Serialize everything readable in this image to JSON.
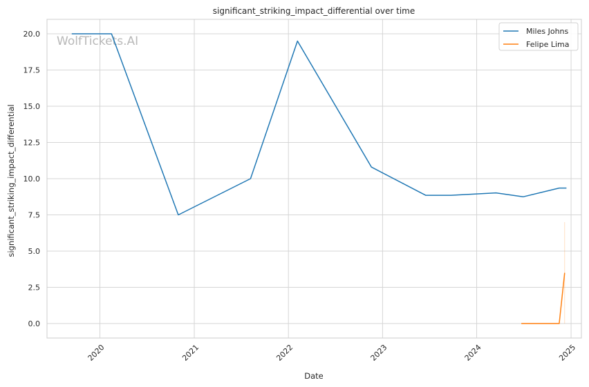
{
  "chart_data": {
    "type": "line",
    "title": "significant_striking_impact_differential over time",
    "xlabel": "Date",
    "ylabel": "significant_striking_impact_differential",
    "watermark": "WolfTickets.AI",
    "x_type": "date",
    "xlim": [
      "2019-06-10",
      "2025-02-10"
    ],
    "ylim": [
      -1.0,
      21.0
    ],
    "x_ticks": [
      {
        "date": "2020-01-01",
        "label": "2020"
      },
      {
        "date": "2021-01-01",
        "label": "2021"
      },
      {
        "date": "2022-01-01",
        "label": "2022"
      },
      {
        "date": "2023-01-01",
        "label": "2023"
      },
      {
        "date": "2024-01-01",
        "label": "2024"
      },
      {
        "date": "2025-01-01",
        "label": "2025"
      }
    ],
    "y_ticks": [
      {
        "value": 0.0,
        "label": "0.0"
      },
      {
        "value": 2.5,
        "label": "2.5"
      },
      {
        "value": 5.0,
        "label": "5.0"
      },
      {
        "value": 7.5,
        "label": "7.5"
      },
      {
        "value": 10.0,
        "label": "10.0"
      },
      {
        "value": 12.5,
        "label": "12.5"
      },
      {
        "value": 15.0,
        "label": "15.0"
      },
      {
        "value": 17.5,
        "label": "17.5"
      },
      {
        "value": 20.0,
        "label": "20.0"
      }
    ],
    "grid": true,
    "legend_position": "top-right",
    "series": [
      {
        "name": "Miles Johns",
        "color": "#1f77b4",
        "points": [
          {
            "x": "2019-09-14",
            "y": 20.0
          },
          {
            "x": "2020-02-15",
            "y": 20.0
          },
          {
            "x": "2020-10-31",
            "y": 7.5
          },
          {
            "x": "2021-08-07",
            "y": 10.0
          },
          {
            "x": "2022-02-05",
            "y": 19.5
          },
          {
            "x": "2022-11-19",
            "y": 10.8
          },
          {
            "x": "2023-06-17",
            "y": 8.85
          },
          {
            "x": "2023-09-23",
            "y": 8.85
          },
          {
            "x": "2024-03-16",
            "y": 9.02
          },
          {
            "x": "2024-06-29",
            "y": 8.75
          },
          {
            "x": "2024-11-16",
            "y": 9.35
          },
          {
            "x": "2024-12-14",
            "y": 9.35
          }
        ]
      },
      {
        "name": "Felipe Lima",
        "color": "#ff7f0e",
        "points": [
          {
            "x": "2024-06-22",
            "y": 0.0
          },
          {
            "x": "2024-11-16",
            "y": 0.0
          },
          {
            "x": "2024-12-07",
            "y": 3.5
          }
        ],
        "band": {
          "x": "2024-12-07",
          "low": 0.0,
          "high": 7.0
        }
      }
    ]
  }
}
